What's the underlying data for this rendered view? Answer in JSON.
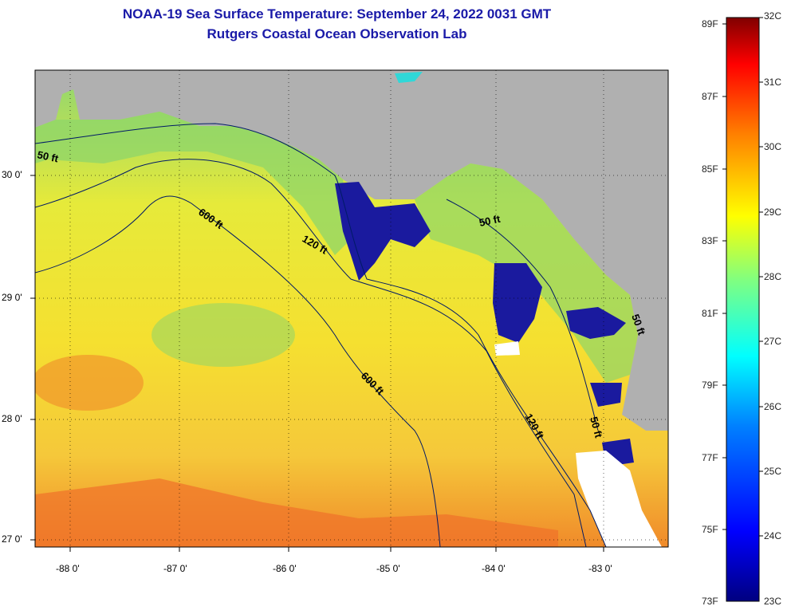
{
  "title": {
    "line1": "NOAA-19 Sea Surface Temperature:  September 24, 2022 0031 GMT",
    "line2": "Rutgers Coastal Ocean Observation Lab"
  },
  "axes": {
    "latitude_labels": [
      "30 0'",
      "29 0'",
      "28 0'",
      "27 0'"
    ],
    "longitude_labels": [
      "-88 0'",
      "-87 0'",
      "-86 0'",
      "-85 0'",
      "-84 0'",
      "-83 0'"
    ]
  },
  "isobath_labels": [
    "50 ft",
    "600 ft",
    "120 ft",
    "50 ft",
    "600 ft",
    "120 ft",
    "50 ft",
    "50 ft"
  ],
  "colorbar": {
    "fahrenheit": [
      "89F",
      "87F",
      "85F",
      "83F",
      "81F",
      "79F",
      "77F",
      "75F",
      "73F"
    ],
    "celsius": [
      "32C",
      "31C",
      "30C",
      "29C",
      "28C",
      "27C",
      "26C",
      "25C",
      "24C",
      "23C"
    ],
    "colors": [
      "#000080",
      "#0000ff",
      "#0080ff",
      "#00ffff",
      "#80ff80",
      "#ffff00",
      "#ff8000",
      "#ff0000",
      "#800000"
    ]
  },
  "colors": {
    "land": "#b0b0b0",
    "warm_water": "#f5e23a",
    "cool_water": "#1a1a9e",
    "mid_water": "#8ed66a",
    "title": "#1a1aa8"
  }
}
